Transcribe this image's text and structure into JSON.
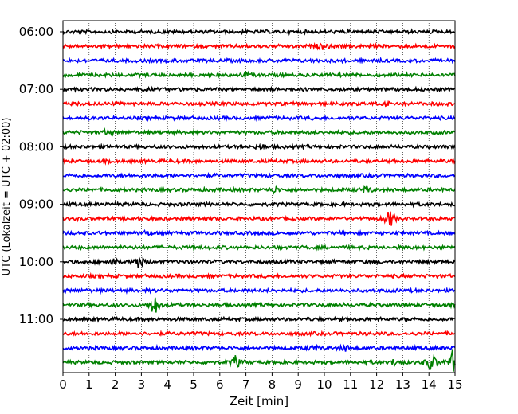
{
  "chart_data": {
    "type": "line",
    "title": "",
    "xlabel": "Zeit  [min]",
    "ylabel": "UTC (Lokalzeit = UTC + 02:00)",
    "xlim": [
      0,
      15
    ],
    "x_ticks": [
      "0",
      "1",
      "2",
      "3",
      "4",
      "5",
      "6",
      "7",
      "8",
      "9",
      "10",
      "11",
      "12",
      "13",
      "14",
      "15"
    ],
    "y_tick_labels": [
      "06:00",
      "07:00",
      "08:00",
      "09:00",
      "10:00",
      "11:00"
    ],
    "grid": "vertical dotted",
    "trace_colors": [
      "#000000",
      "#ff0000",
      "#0000ff",
      "#008000"
    ],
    "trace_start_times": [
      "06:00",
      "06:15",
      "06:30",
      "06:45",
      "07:00",
      "07:15",
      "07:30",
      "07:45",
      "08:00",
      "08:15",
      "08:30",
      "08:45",
      "09:00",
      "09:15",
      "09:30",
      "09:45",
      "10:00",
      "10:15",
      "10:30",
      "10:45",
      "11:00",
      "11:15",
      "11:30",
      "11:45"
    ],
    "events": [
      {
        "trace": "06:15",
        "minute": 9.9,
        "amplitude": 0.25
      },
      {
        "trace": "06:45",
        "minute": 7.0,
        "amplitude": 0.2
      },
      {
        "trace": "07:15",
        "minute": 12.5,
        "amplitude": 0.25
      },
      {
        "trace": "07:45",
        "minute": 1.7,
        "amplitude": 0.2
      },
      {
        "trace": "08:00",
        "minute": 7.6,
        "amplitude": 0.2
      },
      {
        "trace": "08:45",
        "minute": 8.1,
        "amplitude": 0.3
      },
      {
        "trace": "08:45",
        "minute": 11.6,
        "amplitude": 0.35
      },
      {
        "trace": "09:15",
        "minute": 12.5,
        "amplitude": 0.8
      },
      {
        "trace": "09:30",
        "minute": 3.2,
        "amplitude": 0.2
      },
      {
        "trace": "10:00",
        "minute": 1.9,
        "amplitude": 0.35
      },
      {
        "trace": "10:00",
        "minute": 2.9,
        "amplitude": 0.7
      },
      {
        "trace": "10:45",
        "minute": 3.5,
        "amplitude": 1.0
      },
      {
        "trace": "11:30",
        "minute": 9.6,
        "amplitude": 0.25
      },
      {
        "trace": "11:30",
        "minute": 10.8,
        "amplitude": 0.25
      },
      {
        "trace": "11:45",
        "minute": 6.6,
        "amplitude": 0.55
      },
      {
        "trace": "11:45",
        "minute": 12.7,
        "amplitude": 0.3
      },
      {
        "trace": "11:45",
        "minute": 14.1,
        "amplitude": 0.9
      },
      {
        "trace": "11:45",
        "minute": 14.9,
        "amplitude": 1.0
      }
    ]
  }
}
